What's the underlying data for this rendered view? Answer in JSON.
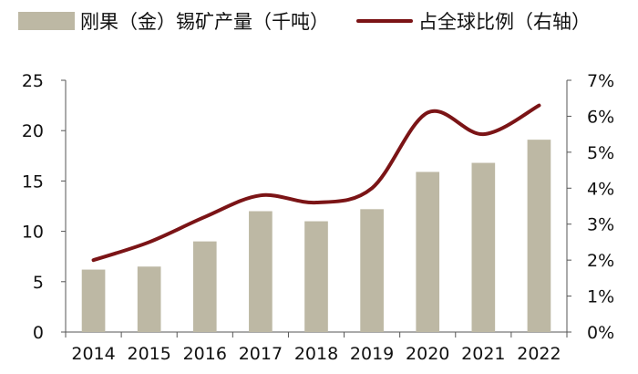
{
  "chart_data": {
    "type": "bar+line",
    "categories": [
      "2014",
      "2015",
      "2016",
      "2017",
      "2018",
      "2019",
      "2020",
      "2021",
      "2022"
    ],
    "series": [
      {
        "name": "刚果（金）锡矿产量（千吨）",
        "type": "bar",
        "axis": "left",
        "values": [
          6.2,
          6.5,
          9.0,
          12.0,
          11.0,
          12.2,
          15.9,
          16.8,
          19.1
        ],
        "color": "#BDB8A4"
      },
      {
        "name": "占全球比例（右轴）",
        "type": "line",
        "axis": "right",
        "values": [
          0.02,
          0.025,
          0.032,
          0.038,
          0.036,
          0.04,
          0.061,
          0.055,
          0.063
        ],
        "color": "#7B1416"
      }
    ],
    "y_left": {
      "lim": [
        0,
        25
      ],
      "ticks": [
        "0",
        "5",
        "10",
        "15",
        "20",
        "25"
      ]
    },
    "y_right": {
      "lim": [
        0,
        0.07
      ],
      "ticks": [
        "0%",
        "1%",
        "2%",
        "3%",
        "4%",
        "5%",
        "6%",
        "7%"
      ]
    },
    "grid": false,
    "legend": "top"
  }
}
